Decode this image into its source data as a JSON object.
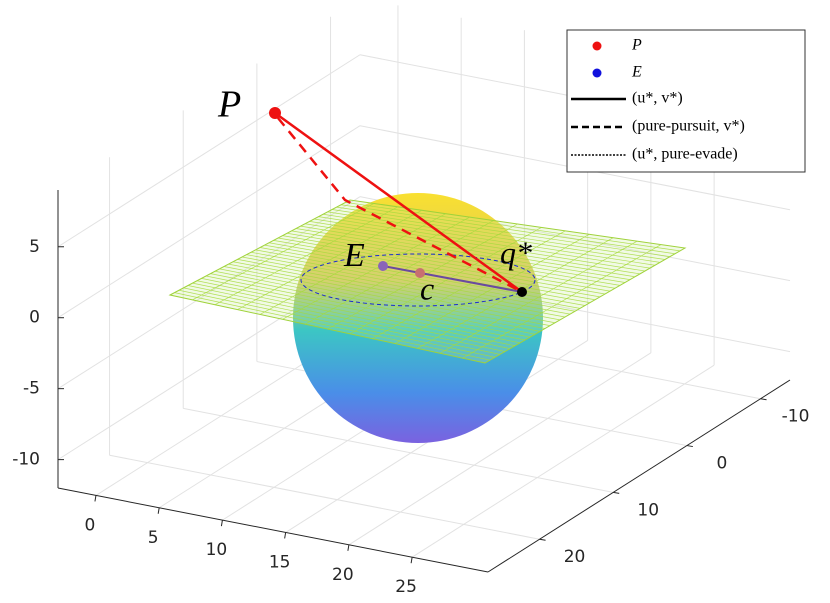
{
  "chart_data": {
    "type": "surface3d",
    "xlim": [
      -3,
      31
    ],
    "ylim": [
      -14,
      27
    ],
    "zlim": [
      -12,
      9
    ],
    "xticks": [
      0,
      5,
      10,
      15,
      20,
      25
    ],
    "yticks": [
      -10,
      0,
      10,
      20
    ],
    "zticks": [
      -10,
      -5,
      0,
      5
    ],
    "grid": true,
    "legend": [
      {
        "name": "P",
        "color": "#ee1111",
        "style": "marker"
      },
      {
        "name": "E",
        "color": "#1111dd",
        "style": "marker"
      },
      {
        "name": "(u*, v*)",
        "color": "#000000",
        "style": "solid"
      },
      {
        "name": "(pure-pursuit, v*)",
        "color": "#000000",
        "style": "dashed"
      },
      {
        "name": "(u*, pure-evade)",
        "color": "#000000",
        "style": "dotted"
      }
    ],
    "annotations": [
      "P",
      "E",
      "c",
      "q*"
    ]
  }
}
